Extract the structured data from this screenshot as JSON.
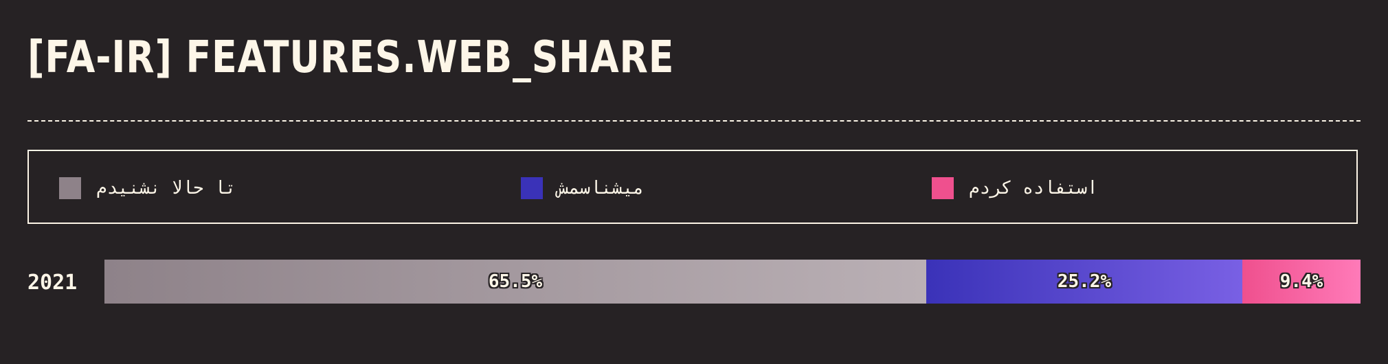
{
  "title": "[FA-IR] FEATURES.WEB_SHARE",
  "legend": [
    {
      "label": "تا حالا نشنیدم",
      "color": "#8e8289"
    },
    {
      "label": "میشناسمش",
      "color": "#3a32b8"
    },
    {
      "label": "استفاده کردم",
      "color": "#ef508e"
    }
  ],
  "chart_data": {
    "type": "bar",
    "orientation": "horizontal",
    "stacked": true,
    "normalized": true,
    "categories": [
      "2021"
    ],
    "series": [
      {
        "name": "تا حالا نشنیدم",
        "values": [
          65.5
        ],
        "labels": [
          "65.5%"
        ],
        "color": "#8e8289",
        "color_end": "#bab0b5"
      },
      {
        "name": "میشناسمش",
        "values": [
          25.2
        ],
        "labels": [
          "25.2%"
        ],
        "color": "#3a32b8",
        "color_end": "#7960e4"
      },
      {
        "name": "استفاده کردم",
        "values": [
          9.4
        ],
        "labels": [
          "9.4%"
        ],
        "color": "#ef508e",
        "color_end": "#ff7ab8"
      }
    ],
    "unit": "%",
    "xlim": [
      0,
      100
    ],
    "legend_position": "top",
    "grid": false
  }
}
